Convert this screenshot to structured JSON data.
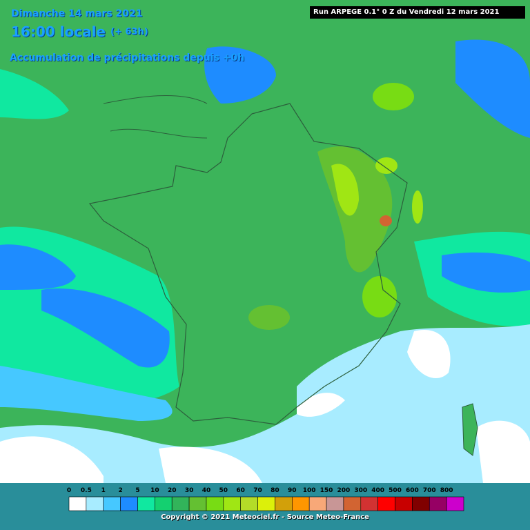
{
  "header": {
    "date": "Dimanche 14 mars 2021",
    "time": "16:00 locale",
    "lead": "(+ 63h)",
    "subtitle": "Accumulation de précipitations depuis +0h",
    "run": "Run ARPEGE 0.1° 0 Z du Vendredi 12 mars 2021"
  },
  "legend": {
    "ticks": [
      "0",
      "0.5",
      "1",
      "2",
      "5",
      "10",
      "20",
      "30",
      "40",
      "50",
      "60",
      "70",
      "80",
      "90",
      "100",
      "150",
      "200",
      "300",
      "400",
      "500",
      "600",
      "700",
      "800"
    ],
    "colors": [
      "#ffffff",
      "#a8ecff",
      "#46c8ff",
      "#1e8cff",
      "#10e8a0",
      "#14d070",
      "#32b45a",
      "#64c032",
      "#78dc14",
      "#a0e614",
      "#b4dc28",
      "#dcf00a",
      "#d2a00a",
      "#ff9600",
      "#f8a878",
      "#c89696",
      "#d26432",
      "#d23232",
      "#ff0000",
      "#c80000",
      "#800000",
      "#960064",
      "#cc00cc"
    ]
  },
  "copyright": "Copyright © 2021 Meteociel.fr - Source Meteo-France"
}
